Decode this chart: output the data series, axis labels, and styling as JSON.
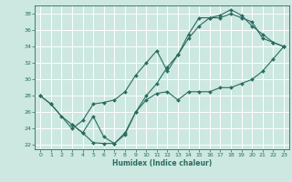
{
  "title": "",
  "xlabel": "Humidex (Indice chaleur)",
  "xlim": [
    -0.5,
    23.5
  ],
  "ylim": [
    21.5,
    39.0
  ],
  "xticks": [
    0,
    1,
    2,
    3,
    4,
    5,
    6,
    7,
    8,
    9,
    10,
    11,
    12,
    13,
    14,
    15,
    16,
    17,
    18,
    19,
    20,
    21,
    22,
    23
  ],
  "yticks": [
    22,
    24,
    26,
    28,
    30,
    32,
    34,
    36,
    38
  ],
  "bg_color": "#cce8e0",
  "line_color": "#2a6b60",
  "grid_color": "#ffffff",
  "line1_x": [
    0,
    1,
    2,
    3,
    4,
    5,
    6,
    7,
    8,
    9,
    10,
    11,
    12,
    13,
    14,
    15,
    16,
    17,
    18,
    19,
    20,
    21,
    22,
    23
  ],
  "line1_y": [
    28,
    27,
    25.5,
    24.5,
    23.5,
    22.3,
    22.2,
    22.2,
    23.3,
    26,
    27.5,
    28.3,
    28.5,
    27.5,
    28.5,
    28.5,
    28.5,
    29,
    29,
    29.5,
    30,
    31,
    32.5,
    34
  ],
  "line2_x": [
    0,
    1,
    3,
    4,
    5,
    6,
    7,
    8,
    9,
    10,
    11,
    12,
    13,
    14,
    15,
    16,
    17,
    18,
    19,
    20,
    21,
    22,
    23
  ],
  "line2_y": [
    28,
    27,
    24,
    25,
    27,
    27.2,
    27.5,
    28.5,
    30.5,
    32,
    33.5,
    31,
    33,
    35.5,
    37.5,
    37.5,
    37.8,
    38.5,
    37.8,
    36.5,
    35.5,
    34.5,
    34
  ],
  "line3_x": [
    3,
    4,
    5,
    6,
    7,
    8,
    9,
    10,
    11,
    12,
    13,
    14,
    15,
    16,
    17,
    18,
    19,
    20,
    21,
    22,
    23
  ],
  "line3_y": [
    24.5,
    23.5,
    25.5,
    23.0,
    22.2,
    23.5,
    26,
    28,
    29.5,
    31.5,
    33,
    35,
    36.5,
    37.5,
    37.5,
    38.0,
    37.5,
    37.0,
    35.0,
    34.5,
    34
  ]
}
